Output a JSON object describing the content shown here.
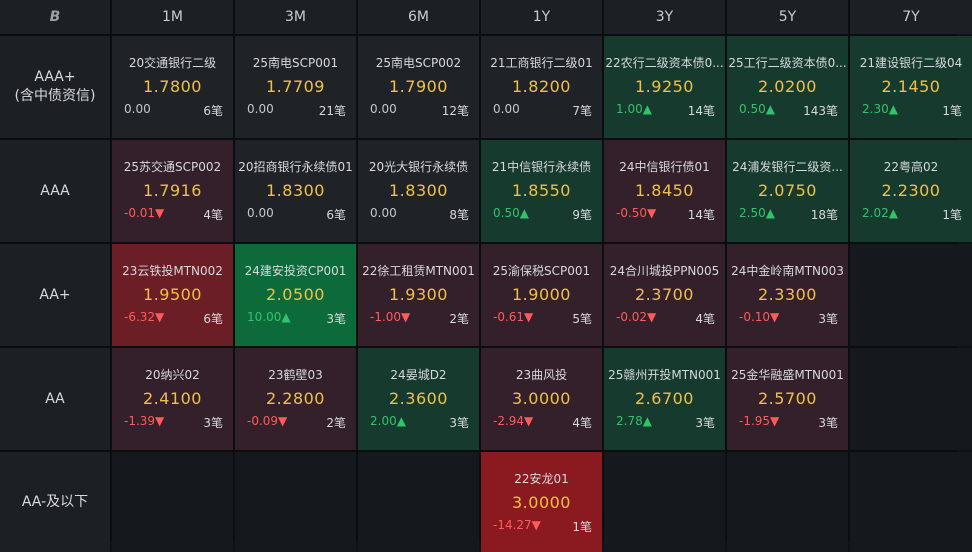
{
  "header": {
    "logo": "B",
    "columns": [
      "1M",
      "3M",
      "6M",
      "1Y",
      "3Y",
      "5Y",
      "7Y"
    ]
  },
  "rows": [
    {
      "label_lines": [
        "AAA+",
        "(含中债资信)"
      ],
      "cells": [
        {
          "name": "20交通银行二级",
          "rate": "1.7800",
          "change": "0.00",
          "dir": "flat",
          "count": "6笔",
          "tone": "neu"
        },
        {
          "name": "25南电SCP001",
          "rate": "1.7709",
          "change": "0.00",
          "dir": "flat",
          "count": "21笔",
          "tone": "neu"
        },
        {
          "name": "25南电SCP002",
          "rate": "1.7900",
          "change": "0.00",
          "dir": "flat",
          "count": "12笔",
          "tone": "neu"
        },
        {
          "name": "21工商银行二级01",
          "rate": "1.8200",
          "change": "0.00",
          "dir": "flat",
          "count": "7笔",
          "tone": "neu"
        },
        {
          "name": "22农行二级资本债0...",
          "rate": "1.9250",
          "change": "1.00▲",
          "dir": "up",
          "count": "14笔",
          "tone": "g1"
        },
        {
          "name": "25工行二级资本债0...",
          "rate": "2.0200",
          "change": "0.50▲",
          "dir": "up",
          "count": "143笔",
          "tone": "g1"
        },
        {
          "name": "21建设银行二级04",
          "rate": "2.1450",
          "change": "2.30▲",
          "dir": "up",
          "count": "1笔",
          "tone": "g1"
        }
      ]
    },
    {
      "label_lines": [
        "AAA"
      ],
      "cells": [
        {
          "name": "25苏交通SCP002",
          "rate": "1.7916",
          "change": "-0.01▼",
          "dir": "down",
          "count": "4笔",
          "tone": "r1"
        },
        {
          "name": "20招商银行永续债01",
          "rate": "1.8300",
          "change": "0.00",
          "dir": "flat",
          "count": "6笔",
          "tone": "neu"
        },
        {
          "name": "20光大银行永续债",
          "rate": "1.8300",
          "change": "0.00",
          "dir": "flat",
          "count": "8笔",
          "tone": "neu"
        },
        {
          "name": "21中信银行永续债",
          "rate": "1.8550",
          "change": "0.50▲",
          "dir": "up",
          "count": "9笔",
          "tone": "g1"
        },
        {
          "name": "24中信银行债01",
          "rate": "1.8450",
          "change": "-0.50▼",
          "dir": "down",
          "count": "14笔",
          "tone": "r1"
        },
        {
          "name": "24浦发银行二级资...",
          "rate": "2.0750",
          "change": "2.50▲",
          "dir": "up",
          "count": "18笔",
          "tone": "g1"
        },
        {
          "name": "22粤高02",
          "rate": "2.2300",
          "change": "2.02▲",
          "dir": "up",
          "count": "1笔",
          "tone": "g1"
        }
      ]
    },
    {
      "label_lines": [
        "AA+"
      ],
      "cells": [
        {
          "name": "23云铁投MTN002",
          "rate": "1.9500",
          "change": "-6.32▼",
          "dir": "down",
          "count": "6笔",
          "tone": "r2"
        },
        {
          "name": "24建安投资CP001",
          "rate": "2.0500",
          "change": "10.00▲",
          "dir": "up",
          "count": "3笔",
          "tone": "g2"
        },
        {
          "name": "22徐工租赁MTN001",
          "rate": "1.9300",
          "change": "-1.00▼",
          "dir": "down",
          "count": "2笔",
          "tone": "r1"
        },
        {
          "name": "25渝保税SCP001",
          "rate": "1.9000",
          "change": "-0.61▼",
          "dir": "down",
          "count": "5笔",
          "tone": "r1"
        },
        {
          "name": "24合川城投PPN005",
          "rate": "2.3700",
          "change": "-0.02▼",
          "dir": "down",
          "count": "4笔",
          "tone": "r1"
        },
        {
          "name": "24中金岭南MTN003",
          "rate": "2.3300",
          "change": "-0.10▼",
          "dir": "down",
          "count": "3笔",
          "tone": "r1"
        },
        null
      ]
    },
    {
      "label_lines": [
        "AA"
      ],
      "cells": [
        {
          "name": "20纳兴02",
          "rate": "2.4100",
          "change": "-1.39▼",
          "dir": "down",
          "count": "3笔",
          "tone": "r1"
        },
        {
          "name": "23鹤壁03",
          "rate": "2.2800",
          "change": "-0.09▼",
          "dir": "down",
          "count": "2笔",
          "tone": "r1"
        },
        {
          "name": "24晏城D2",
          "rate": "2.3600",
          "change": "2.00▲",
          "dir": "up",
          "count": "3笔",
          "tone": "g1"
        },
        {
          "name": "23曲风投",
          "rate": "3.0000",
          "change": "-2.94▼",
          "dir": "down",
          "count": "4笔",
          "tone": "r1"
        },
        {
          "name": "25赣州开投MTN001",
          "rate": "2.6700",
          "change": "2.78▲",
          "dir": "up",
          "count": "3笔",
          "tone": "g1"
        },
        {
          "name": "25金华融盛MTN001",
          "rate": "2.5700",
          "change": "-1.95▼",
          "dir": "down",
          "count": "3笔",
          "tone": "r1"
        },
        null
      ]
    },
    {
      "label_lines": [
        "AA-及以下"
      ],
      "cells": [
        null,
        null,
        null,
        {
          "name": "22安龙01",
          "rate": "3.0000",
          "change": "-14.27▼",
          "dir": "down",
          "count": "1笔",
          "tone": "r3"
        },
        null,
        null,
        null
      ]
    }
  ]
}
